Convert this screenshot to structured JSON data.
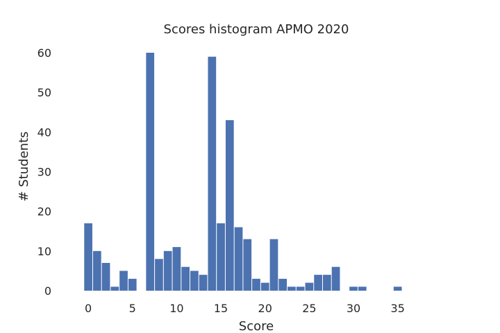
{
  "chart_data": {
    "type": "bar",
    "title": "Scores histogram APMO 2020",
    "xlabel": "Score",
    "ylabel": "# Students",
    "xlim": [
      -1.5,
      39.5
    ],
    "ylim": [
      0,
      60
    ],
    "x_ticks": [
      0,
      5,
      10,
      15,
      20,
      25,
      30,
      35
    ],
    "y_ticks": [
      0,
      10,
      20,
      30,
      40,
      50,
      60
    ],
    "bar_color": "#4c72b0",
    "grid": false,
    "bins": [
      {
        "score": 0,
        "count": 17
      },
      {
        "score": 1,
        "count": 10
      },
      {
        "score": 2,
        "count": 7
      },
      {
        "score": 3,
        "count": 1
      },
      {
        "score": 4,
        "count": 5
      },
      {
        "score": 5,
        "count": 3
      },
      {
        "score": 6,
        "count": 0
      },
      {
        "score": 7,
        "count": 60
      },
      {
        "score": 8,
        "count": 8
      },
      {
        "score": 9,
        "count": 10
      },
      {
        "score": 10,
        "count": 11
      },
      {
        "score": 11,
        "count": 6
      },
      {
        "score": 12,
        "count": 5
      },
      {
        "score": 13,
        "count": 4
      },
      {
        "score": 14,
        "count": 59
      },
      {
        "score": 15,
        "count": 17
      },
      {
        "score": 16,
        "count": 43
      },
      {
        "score": 17,
        "count": 16
      },
      {
        "score": 18,
        "count": 13
      },
      {
        "score": 19,
        "count": 3
      },
      {
        "score": 20,
        "count": 2
      },
      {
        "score": 21,
        "count": 13
      },
      {
        "score": 22,
        "count": 3
      },
      {
        "score": 23,
        "count": 1
      },
      {
        "score": 24,
        "count": 1
      },
      {
        "score": 25,
        "count": 2
      },
      {
        "score": 26,
        "count": 4
      },
      {
        "score": 27,
        "count": 4
      },
      {
        "score": 28,
        "count": 6
      },
      {
        "score": 29,
        "count": 0
      },
      {
        "score": 30,
        "count": 1
      },
      {
        "score": 31,
        "count": 1
      },
      {
        "score": 32,
        "count": 0
      },
      {
        "score": 33,
        "count": 0
      },
      {
        "score": 34,
        "count": 0
      },
      {
        "score": 35,
        "count": 1
      }
    ]
  }
}
